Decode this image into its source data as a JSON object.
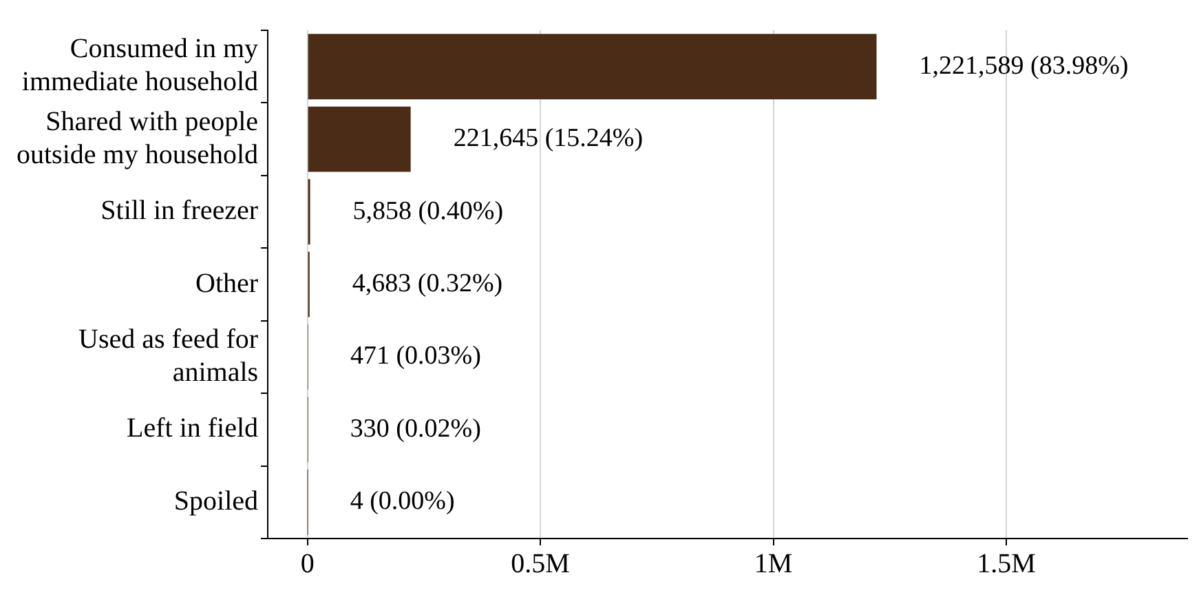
{
  "chart_data": {
    "type": "bar",
    "orientation": "horizontal",
    "categories": [
      "Consumed in my immediate household",
      "Shared with people outside my household",
      "Still in freezer",
      "Other",
      "Used as feed for animals",
      "Left in field",
      "Spoiled"
    ],
    "values": [
      1221589,
      221645,
      5858,
      4683,
      471,
      330,
      4
    ],
    "value_labels": [
      "1,221,589 (83.98%)",
      "221,645 (15.24%)",
      "5,858 (0.40%)",
      "4,683 (0.32%)",
      "471 (0.03%)",
      "330 (0.02%)",
      "4 (0.00%)"
    ],
    "color": "#4a2c17",
    "xlim": [
      -85000,
      1890000
    ],
    "xticks": [
      0,
      {
        "value": 500000,
        "label": "0.5M"
      },
      {
        "value": 1000000,
        "label": "1M"
      },
      {
        "value": 1500000,
        "label": "1.5M"
      }
    ],
    "grid": "x",
    "legend": false
  }
}
